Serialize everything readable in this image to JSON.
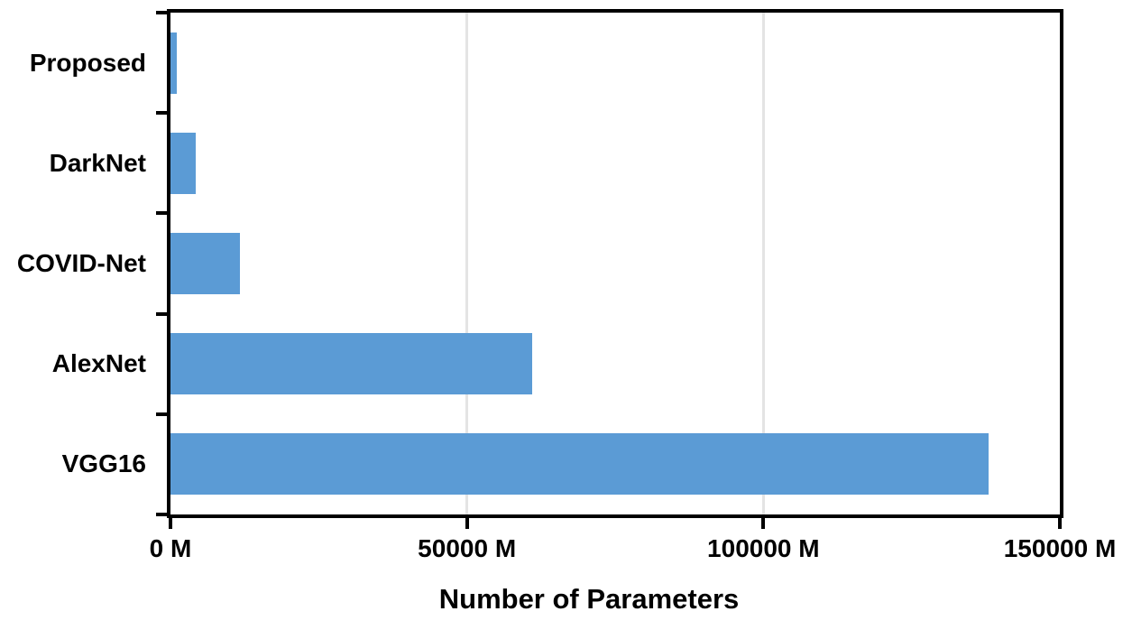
{
  "chart_data": {
    "type": "bar",
    "orientation": "horizontal",
    "title": "",
    "xlabel": "Number of Parameters",
    "ylabel": "",
    "categories": [
      "Proposed",
      "DarkNet",
      "COVID-Net",
      "AlexNet",
      "VGG16"
    ],
    "values": [
      1100,
      4200,
      11750,
      61000,
      138000
    ],
    "xlim": [
      0,
      150000
    ],
    "x_ticks": [
      {
        "value": 0,
        "label": "0 M"
      },
      {
        "value": 50000,
        "label": "50000 M"
      },
      {
        "value": 100000,
        "label": "100000 M"
      },
      {
        "value": 150000,
        "label": "150000 M"
      }
    ],
    "grid": "vertical-gridlines-at-ticks",
    "legend": "none",
    "colors": {
      "bar": "#5b9bd5",
      "gridline": "#e4e4e4",
      "axis": "#000000",
      "text": "#000000",
      "background": "#ffffff"
    }
  }
}
